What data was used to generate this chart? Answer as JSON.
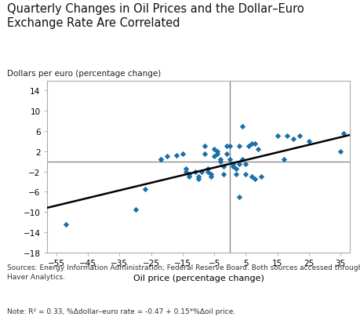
{
  "title": "Quarterly Changes in Oil Prices and the Dollar–Euro\nExchange Rate Are Correlated",
  "ylabel": "Dollars per euro (percentage change)",
  "xlabel": "Oil price (percentage change)",
  "source": "Sources: Energy Information Administration; Federal Reserve Board. Both sources accessed through\nHaver Analytics.",
  "note": "Note: R² = 0.33, %Δdollar–euro rate = -0.47 + 0.15*%Δoil price.",
  "scatter_color": "#1a6fa8",
  "line_color": "#000000",
  "hline_color": "#808080",
  "vline_color": "#808080",
  "spine_color": "#aaaaaa",
  "bg_color": "#ffffff",
  "xlim": [
    -58,
    38
  ],
  "ylim": [
    -18,
    16
  ],
  "xticks": [
    -55,
    -45,
    -35,
    -25,
    -15,
    -5,
    5,
    15,
    25,
    35
  ],
  "yticks": [
    -18,
    -14,
    -10,
    -6,
    -2,
    2,
    6,
    10,
    14
  ],
  "intercept": -0.47,
  "slope": 0.15,
  "x_data": [
    -52,
    -30,
    -27,
    -22,
    -22,
    -20,
    -17,
    -15,
    -14,
    -14,
    -13,
    -13,
    -11,
    -10,
    -10,
    -9,
    -8,
    -8,
    -7,
    -7,
    -6,
    -6,
    -5,
    -5,
    -4,
    -4,
    -3,
    -3,
    -2,
    -2,
    -1,
    -1,
    0,
    0,
    1,
    1,
    2,
    2,
    3,
    3,
    3,
    4,
    4,
    5,
    5,
    6,
    7,
    7,
    8,
    8,
    9,
    10,
    15,
    17,
    18,
    20,
    22,
    25,
    35,
    36
  ],
  "y_data": [
    -12.5,
    -9.5,
    -5.5,
    0.5,
    0.5,
    1,
    1.2,
    1.5,
    -1.5,
    -2,
    -2.5,
    -3,
    -2,
    -3,
    -3.5,
    -2,
    3,
    1.5,
    -1.5,
    -2,
    -2.5,
    -3,
    2.5,
    1,
    2,
    1.5,
    0.5,
    0,
    -1,
    -2.5,
    3,
    1.5,
    3,
    0.5,
    -1,
    -0.5,
    -1.5,
    -2.5,
    -7,
    3,
    -0.5,
    7,
    0.5,
    -0.5,
    -2.5,
    3,
    3.5,
    -3,
    -3.5,
    3.5,
    2.5,
    -3,
    5,
    0.5,
    5,
    4.5,
    5,
    4,
    2,
    5.5
  ]
}
